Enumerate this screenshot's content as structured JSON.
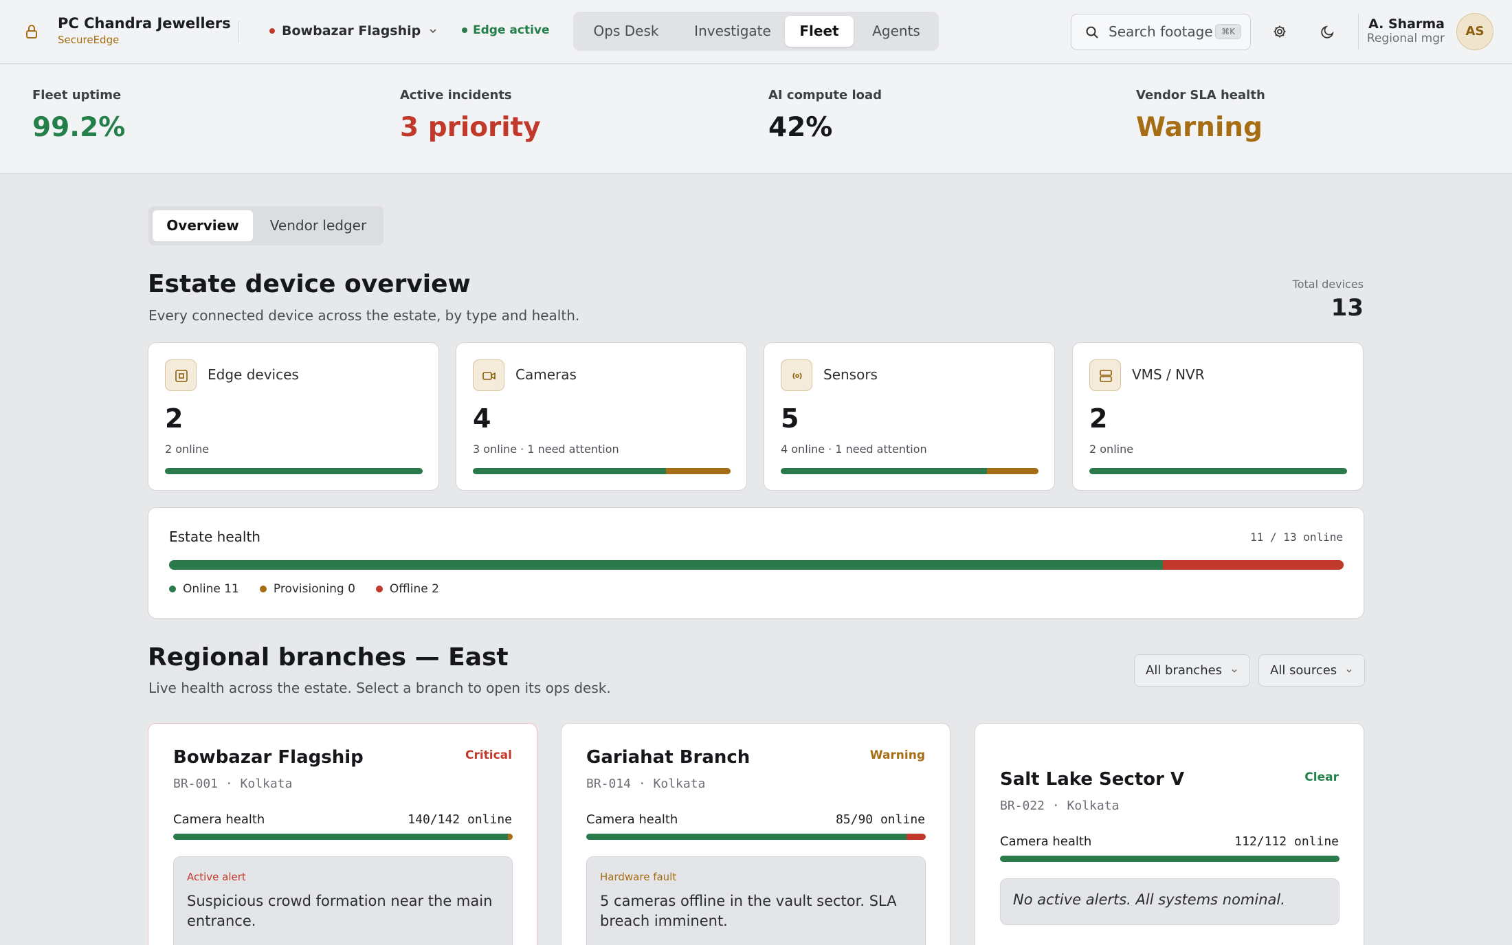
{
  "header": {
    "brand_name": "PC Chandra Jewellers",
    "brand_sub": "SecureEdge",
    "branch_selector": "Bowbazar Flagship",
    "edge_status": "Edge active",
    "nav_tabs": [
      "Ops Desk",
      "Investigate",
      "Fleet",
      "Agents"
    ],
    "active_nav": "Fleet",
    "search_placeholder": "Search footage",
    "search_shortcut": "⌘K",
    "user_name": "A. Sharma",
    "user_role": "Regional mgr",
    "avatar_initials": "AS"
  },
  "kpis": [
    {
      "label": "Fleet uptime",
      "value": "99.2%",
      "color": "#23804a"
    },
    {
      "label": "Active incidents",
      "value": "3 priority",
      "color": "#c0392b"
    },
    {
      "label": "AI compute load",
      "value": "42%",
      "color": "#15171a"
    },
    {
      "label": "Vendor SLA health",
      "value": "Warning",
      "color": "#a66e14"
    }
  ],
  "subtabs": [
    "Overview",
    "Vendor ledger"
  ],
  "overview": {
    "title": "Estate device overview",
    "description": "Every connected device across the estate, by type and health.",
    "total_label": "Total devices",
    "total_value": "13"
  },
  "devices": [
    {
      "name": "Edge devices",
      "icon": "chip-icon",
      "count": "2",
      "status": "2 online",
      "online": 2,
      "attention": 0
    },
    {
      "name": "Cameras",
      "icon": "camera-icon",
      "count": "4",
      "status": "3 online · 1 need attention",
      "online": 3,
      "attention": 1
    },
    {
      "name": "Sensors",
      "icon": "sensor-icon",
      "count": "5",
      "status": "4 online · 1 need attention",
      "online": 4,
      "attention": 1
    },
    {
      "name": "VMS / NVR",
      "icon": "server-icon",
      "count": "2",
      "status": "2 online",
      "online": 2,
      "attention": 0
    }
  ],
  "estate_health": {
    "title": "Estate health",
    "summary": "11 / 13 online",
    "online": 11,
    "provisioning": 0,
    "offline": 2,
    "legend": [
      "Online 11",
      "Provisioning 0",
      "Offline 2"
    ]
  },
  "branches_section": {
    "title": "Regional branches — East",
    "description": "Live health across the estate. Select a branch to open its ops desk.",
    "filter_branches": "All branches",
    "filter_sources": "All sources"
  },
  "branches": [
    {
      "name": "Bowbazar Flagship",
      "severity": "Critical",
      "id": "BR-001 · Kolkata",
      "camera_label": "Camera health",
      "camera_value": "140/142 online",
      "online": 140,
      "warn": 2,
      "off": 0,
      "alert_kind": "Active alert",
      "alert_msg": "Suspicious crowd formation near the main entrance."
    },
    {
      "name": "Gariahat Branch",
      "severity": "Warning",
      "id": "BR-014 · Kolkata",
      "camera_label": "Camera health",
      "camera_value": "85/90 online",
      "online": 85,
      "warn": 0,
      "off": 5,
      "alert_kind": "Hardware fault",
      "alert_msg": "5 cameras offline in the vault sector. SLA breach imminent."
    },
    {
      "name": "Salt Lake Sector V",
      "severity": "Clear",
      "id": "BR-022 · Kolkata",
      "camera_label": "Camera health",
      "camera_value": "112/112 online",
      "online": 112,
      "warn": 0,
      "off": 0,
      "alert_msg": "No active alerts. All systems nominal."
    }
  ],
  "colors": {
    "green": "#2a7a4b",
    "amber": "#a66e14",
    "red": "#c0392b"
  }
}
